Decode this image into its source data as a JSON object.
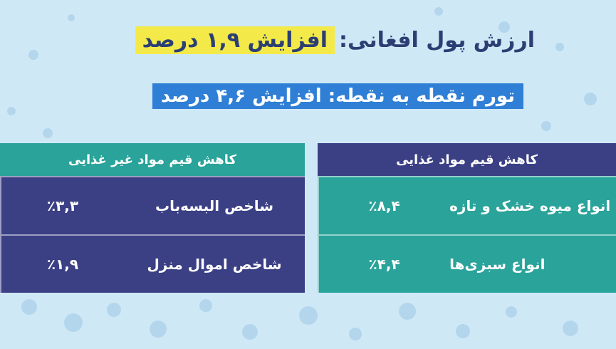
{
  "headline": {
    "prefix": "ارزش پول افغانی:",
    "highlight": "افزایش ۱,۹ درصد",
    "highlight_color": "#f3ea4a"
  },
  "subheadline": {
    "text": "تورم نقطه به نقطه: افزایش ۴,۶ درصد",
    "bg_color": "#2f7fd6"
  },
  "nonfood_table": {
    "header": "کاهش قیم مواد غیر غذایی",
    "rows": [
      {
        "label": "شاخص البسه‌باب",
        "value": "٪۳,۳"
      },
      {
        "label": "شاخص اموال منزل",
        "value": "٪۱,۹"
      }
    ]
  },
  "food_table": {
    "header": "کاهش قیم مواد غذایی",
    "rows": [
      {
        "label": "انواع میوه خشک و تازه",
        "value": "٪۸,۴"
      },
      {
        "label": "انواع سبزی‌ها",
        "value": "٪۴,۴"
      }
    ]
  },
  "colors": {
    "background": "#cfe8f6",
    "navy": "#3b3f84",
    "teal": "#2aa39a",
    "title_text": "#2c3f73"
  }
}
